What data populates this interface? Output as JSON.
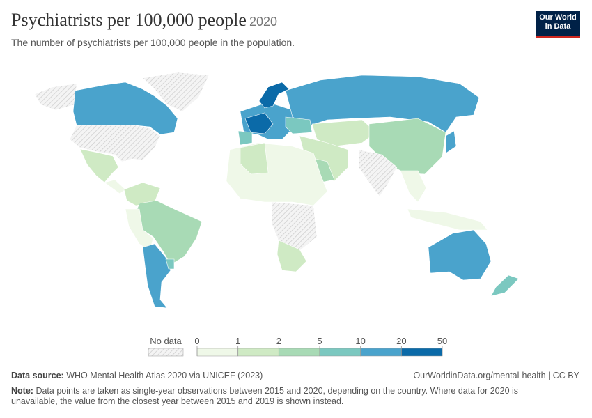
{
  "header": {
    "title": "Psychiatrists per 100,000 people",
    "year": "2020",
    "subtitle": "The number of psychiatrists per 100,000 people in the population.",
    "logo": [
      "Our World",
      "in Data"
    ]
  },
  "legend": {
    "no_data": "No data",
    "bins": [
      0,
      1,
      2,
      5,
      10,
      20,
      50
    ],
    "colors": [
      "#eff8e8",
      "#cfeac4",
      "#a8dab5",
      "#7bc8c0",
      "#4aa3cc",
      "#0b6aa8"
    ]
  },
  "footer": {
    "source_label": "Data source:",
    "source": "WHO Mental Health Atlas 2020 via UNICEF (2023)",
    "url": "OurWorldinData.org/mental-health | CC BY",
    "note_label": "Note:",
    "note": "Data points are taken as single-year observations between 2015 and 2020, depending on the country. Where data for 2020 is unavailable, the value from the closest year between 2015 and 2019 is shown instead."
  }
}
